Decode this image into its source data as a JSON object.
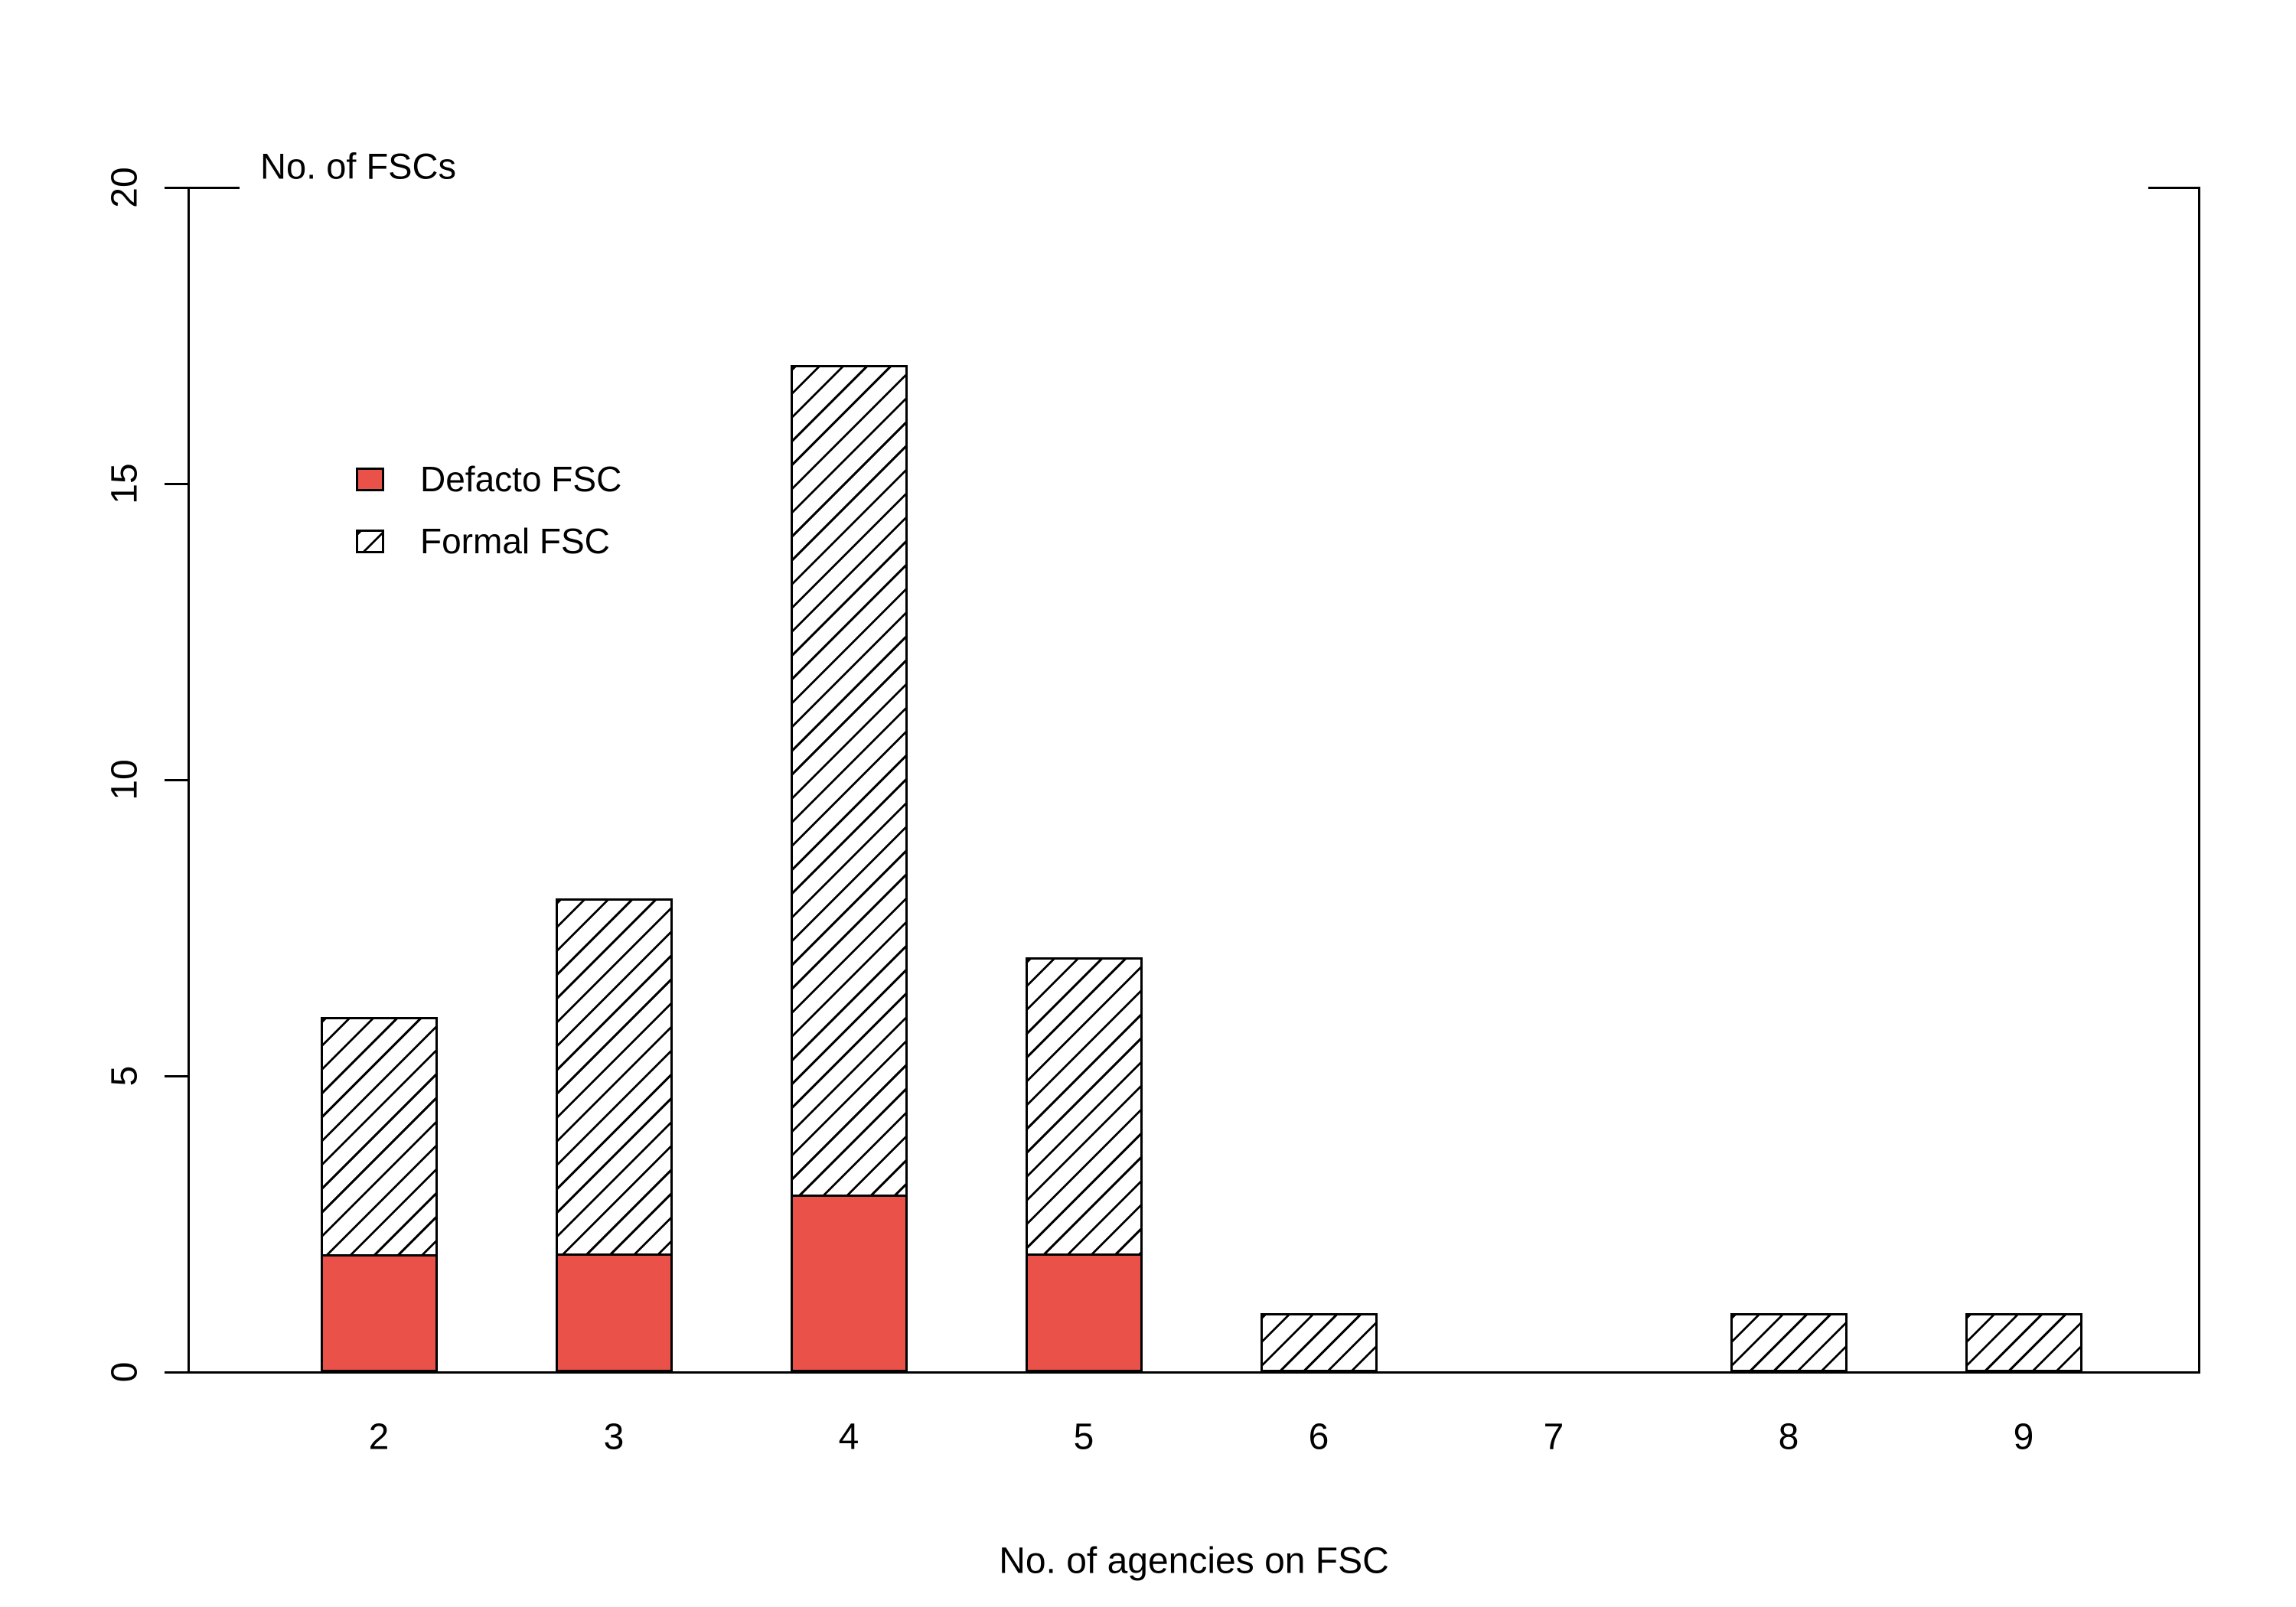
{
  "chart_data": {
    "type": "bar",
    "stacked": true,
    "title": "No. of FSCs",
    "ylabel": "No. of FSCs",
    "xlabel": "No. of agencies on FSC",
    "categories": [
      "2",
      "3",
      "4",
      "5",
      "6",
      "7",
      "8",
      "9"
    ],
    "series": [
      {
        "name": "Defacto FSC",
        "pattern": "solid",
        "color": "#EA5149",
        "values": [
          2,
          2,
          3,
          2,
          0,
          0,
          0,
          0
        ]
      },
      {
        "name": "Formal FSC",
        "pattern": "diagonal-hatch",
        "color": "#000000",
        "values": [
          4,
          6,
          14,
          5,
          1,
          0,
          1,
          1
        ]
      }
    ],
    "totals": [
      6,
      8,
      17,
      7,
      1,
      0,
      1,
      1
    ],
    "ylim": [
      0,
      20
    ],
    "yticks": [
      "0",
      "5",
      "10",
      "15",
      "20"
    ],
    "grid": false,
    "legend_position": "upper-left",
    "bar_border_color": "#000000",
    "background_color": "#ffffff"
  },
  "legend": {
    "items": [
      {
        "label": "Defacto FSC",
        "swatch": "solid-red"
      },
      {
        "label": "Formal FSC",
        "swatch": "diagonal-hatch"
      }
    ]
  }
}
